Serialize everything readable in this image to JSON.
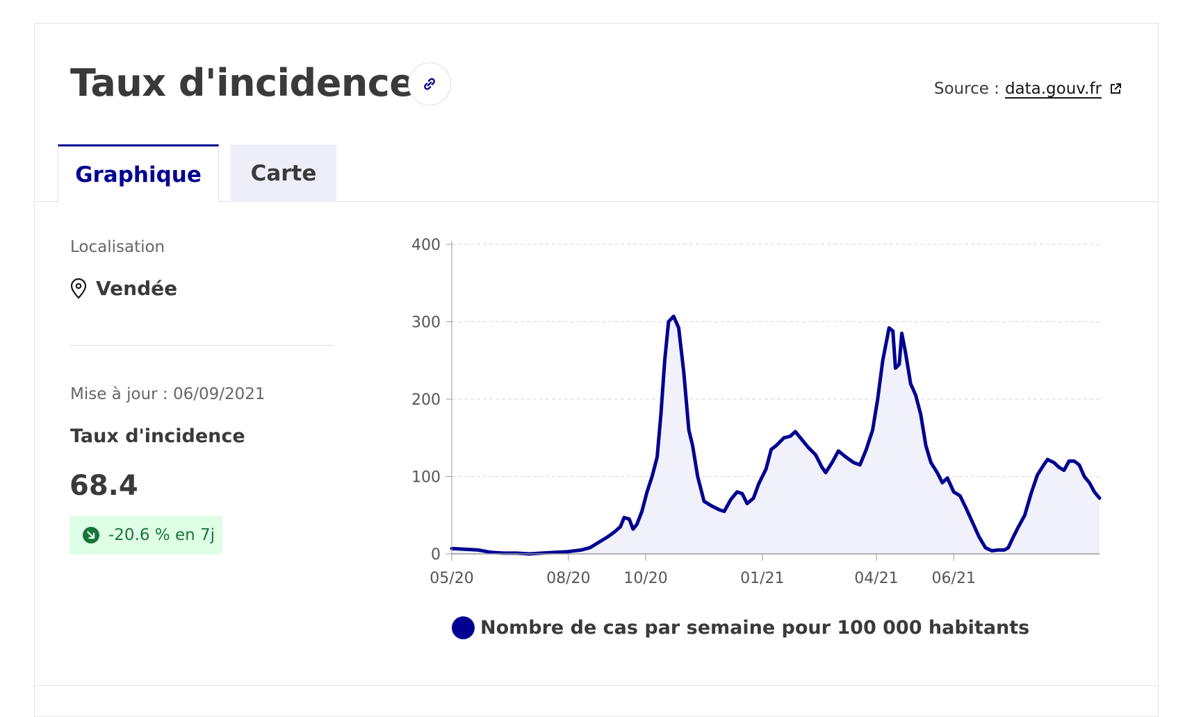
{
  "header": {
    "title": "Taux d'incidence",
    "source_prefix": "Source :",
    "source_link": "data.gouv.fr"
  },
  "tabs": [
    {
      "label": "Graphique",
      "active": true
    },
    {
      "label": "Carte",
      "active": false
    }
  ],
  "sidebar": {
    "location_label": "Localisation",
    "location_value": "Vendée",
    "update_text": "Mise à jour : 06/09/2021",
    "metric_label": "Taux d'incidence",
    "metric_value": "68.4",
    "change_badge": "-20.6 % en 7j"
  },
  "colors": {
    "accent": "#000091",
    "area_fill": "#f1f1fb",
    "badge_bg": "#dffee6",
    "badge_text": "#18753c"
  },
  "icons": {
    "link": "link-icon",
    "external": "external-link-icon",
    "location": "location-pin-icon",
    "trend": "arrow-down-right-icon"
  },
  "chart_data": {
    "type": "area",
    "title": "",
    "xlabel": "",
    "ylabel": "",
    "ylim": [
      0,
      400
    ],
    "yticks": [
      "0",
      "100",
      "200",
      "300",
      "400"
    ],
    "xticks": [
      {
        "label": "05/20",
        "date": "2020-05-15"
      },
      {
        "label": "08/20",
        "date": "2020-08-15"
      },
      {
        "label": "10/20",
        "date": "2020-10-15"
      },
      {
        "label": "01/21",
        "date": "2021-01-15"
      },
      {
        "label": "04/21",
        "date": "2021-04-15"
      },
      {
        "label": "06/21",
        "date": "2021-06-15"
      }
    ],
    "grid": true,
    "legend_position": "bottom",
    "series": [
      {
        "name": "Nombre de cas par semaine pour 100 000 habitants",
        "color": "#000091",
        "points": [
          [
            "2020-05-15",
            7
          ],
          [
            "2020-05-25",
            6
          ],
          [
            "2020-06-05",
            5
          ],
          [
            "2020-06-15",
            2
          ],
          [
            "2020-06-25",
            1
          ],
          [
            "2020-07-05",
            1
          ],
          [
            "2020-07-15",
            0
          ],
          [
            "2020-07-25",
            1
          ],
          [
            "2020-08-05",
            2
          ],
          [
            "2020-08-15",
            3
          ],
          [
            "2020-08-25",
            5
          ],
          [
            "2020-09-01",
            8
          ],
          [
            "2020-09-08",
            15
          ],
          [
            "2020-09-15",
            22
          ],
          [
            "2020-09-20",
            28
          ],
          [
            "2020-09-25",
            35
          ],
          [
            "2020-09-28",
            47
          ],
          [
            "2020-10-02",
            45
          ],
          [
            "2020-10-05",
            32
          ],
          [
            "2020-10-08",
            38
          ],
          [
            "2020-10-12",
            55
          ],
          [
            "2020-10-16",
            80
          ],
          [
            "2020-10-20",
            100
          ],
          [
            "2020-10-24",
            125
          ],
          [
            "2020-10-27",
            180
          ],
          [
            "2020-10-30",
            250
          ],
          [
            "2020-11-02",
            300
          ],
          [
            "2020-11-06",
            307
          ],
          [
            "2020-11-10",
            292
          ],
          [
            "2020-11-14",
            235
          ],
          [
            "2020-11-18",
            160
          ],
          [
            "2020-11-21",
            140
          ],
          [
            "2020-11-25",
            100
          ],
          [
            "2020-11-30",
            68
          ],
          [
            "2020-12-06",
            62
          ],
          [
            "2020-12-12",
            57
          ],
          [
            "2020-12-16",
            55
          ],
          [
            "2020-12-21",
            70
          ],
          [
            "2020-12-26",
            80
          ],
          [
            "2020-12-30",
            78
          ],
          [
            "2021-01-03",
            65
          ],
          [
            "2021-01-08",
            72
          ],
          [
            "2021-01-12",
            90
          ],
          [
            "2021-01-18",
            110
          ],
          [
            "2021-01-22",
            135
          ],
          [
            "2021-01-26",
            140
          ],
          [
            "2021-02-01",
            150
          ],
          [
            "2021-02-06",
            152
          ],
          [
            "2021-02-10",
            158
          ],
          [
            "2021-02-15",
            148
          ],
          [
            "2021-02-20",
            138
          ],
          [
            "2021-02-26",
            128
          ],
          [
            "2021-03-03",
            112
          ],
          [
            "2021-03-06",
            105
          ],
          [
            "2021-03-11",
            118
          ],
          [
            "2021-03-16",
            133
          ],
          [
            "2021-03-22",
            125
          ],
          [
            "2021-03-28",
            118
          ],
          [
            "2021-04-02",
            115
          ],
          [
            "2021-04-07",
            135
          ],
          [
            "2021-04-12",
            160
          ],
          [
            "2021-04-16",
            200
          ],
          [
            "2021-04-20",
            250
          ],
          [
            "2021-04-25",
            292
          ],
          [
            "2021-04-28",
            288
          ],
          [
            "2021-04-30",
            240
          ],
          [
            "2021-05-03",
            245
          ],
          [
            "2021-05-05",
            285
          ],
          [
            "2021-05-08",
            260
          ],
          [
            "2021-05-12",
            220
          ],
          [
            "2021-05-16",
            205
          ],
          [
            "2021-05-20",
            180
          ],
          [
            "2021-05-24",
            140
          ],
          [
            "2021-05-28",
            118
          ],
          [
            "2021-06-02",
            105
          ],
          [
            "2021-06-06",
            92
          ],
          [
            "2021-06-10",
            98
          ],
          [
            "2021-06-15",
            80
          ],
          [
            "2021-06-20",
            75
          ],
          [
            "2021-06-25",
            58
          ],
          [
            "2021-06-30",
            40
          ],
          [
            "2021-07-05",
            22
          ],
          [
            "2021-07-10",
            8
          ],
          [
            "2021-07-15",
            4
          ],
          [
            "2021-07-20",
            5
          ],
          [
            "2021-07-25",
            5
          ],
          [
            "2021-07-28",
            8
          ],
          [
            "2021-08-01",
            22
          ],
          [
            "2021-08-05",
            35
          ],
          [
            "2021-08-10",
            50
          ],
          [
            "2021-08-15",
            78
          ],
          [
            "2021-08-20",
            102
          ],
          [
            "2021-08-25",
            115
          ],
          [
            "2021-08-28",
            122
          ],
          [
            "2021-09-02",
            118
          ],
          [
            "2021-09-06",
            112
          ],
          [
            "2021-09-10",
            108
          ],
          [
            "2021-09-14",
            120
          ],
          [
            "2021-09-18",
            120
          ],
          [
            "2021-09-22",
            115
          ],
          [
            "2021-09-26",
            100
          ],
          [
            "2021-09-30",
            92
          ],
          [
            "2021-10-04",
            80
          ],
          [
            "2021-10-08",
            72
          ]
        ]
      }
    ]
  }
}
